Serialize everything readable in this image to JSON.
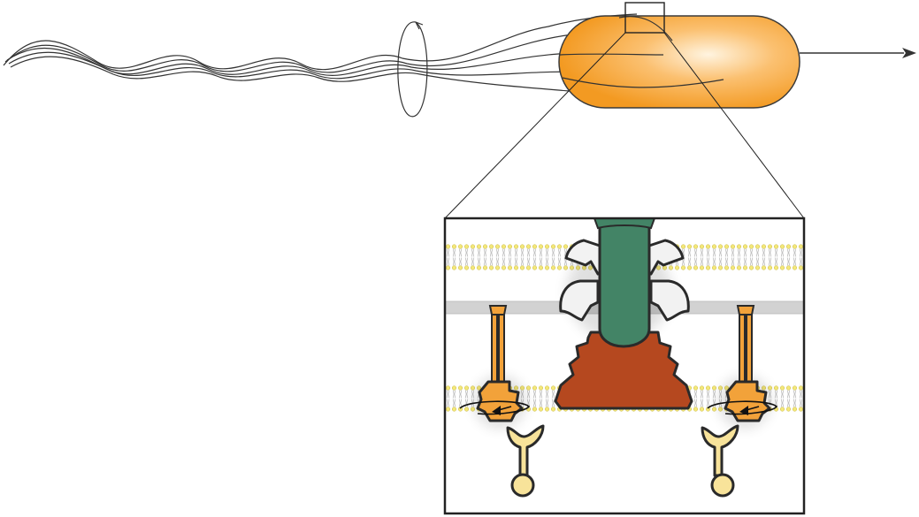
{
  "colors": {
    "cell_body": "#f7a93a",
    "cell_body_highlight": "#fff4e0",
    "cell_outline": "#3a3a3a",
    "flagellum_stroke": "#333333",
    "inset_border": "#222222",
    "rod": "#438466",
    "motor_base": "#b5481f",
    "ring_proteins": "#f2f2f2",
    "stator": "#f2a23a",
    "stator_partner": "#f8e39a",
    "membrane_head": "#f4e87a",
    "membrane_tail": "#bdbdbd",
    "peptidoglycan": "#d2d2d2"
  },
  "icons": {
    "rotation": "rotation-arrow-icon",
    "direction": "direction-arrow-icon"
  }
}
